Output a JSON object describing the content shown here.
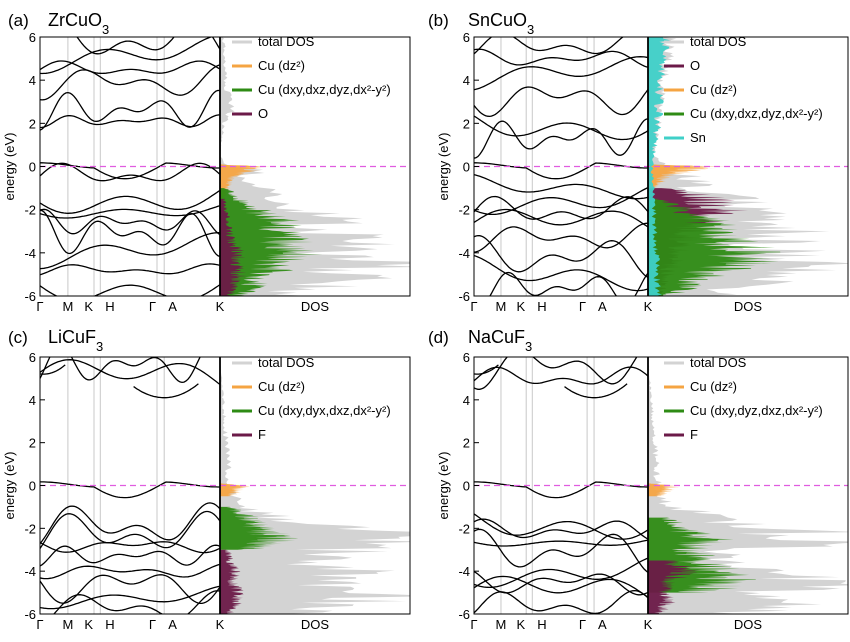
{
  "figure": {
    "yaxis_label": "energy (eV)",
    "dos_label": "DOS",
    "y_ticks": [
      "6",
      "4",
      "2",
      "0",
      "-2",
      "-4",
      "-6"
    ]
  },
  "colors": {
    "total_dos": "#d3d3d3",
    "cu_dz2": "#f5a442",
    "cu_t2": "#2e8b14",
    "anion": "#6b1a48",
    "sn": "#3fd0c8",
    "fermi": "#e05ce0",
    "band": "#000000",
    "gridline": "#c8c8c8"
  },
  "chart_data": [
    {
      "type": "line",
      "panel": "(a)",
      "title": "ZrCuO3",
      "ylabel": "energy (eV)",
      "xlabel": "DOS",
      "ylim": [
        -6,
        6
      ],
      "fermi_level": 0,
      "k_path": [
        "Γ",
        "M",
        "K",
        "H",
        "Γ",
        "A",
        "K"
      ],
      "legend": [
        "total DOS",
        "Cu (dz²)",
        "Cu (dxy,dxz,dyz,dx²-y²)",
        "O"
      ],
      "dos_series": [
        {
          "name": "total DOS",
          "energy": [
            -6,
            -5.5,
            -5,
            -4.5,
            -4,
            -3.5,
            -3,
            -2.5,
            -2,
            -1.5,
            -1,
            -0.5,
            -0.2,
            0,
            0.5,
            2,
            2.6,
            4,
            6
          ],
          "values": [
            0.35,
            0.55,
            0.75,
            0.8,
            0.65,
            0.7,
            0.55,
            0.6,
            0.5,
            0.35,
            0.2,
            0.1,
            0.25,
            0.05,
            0,
            0.02,
            0.06,
            0.03,
            0.02
          ]
        },
        {
          "name": "Cu (dz²)",
          "energy": [
            -1.5,
            -1,
            -0.5,
            -0.2,
            0,
            0.1
          ],
          "values": [
            0.02,
            0.04,
            0.06,
            0.15,
            0.2,
            0
          ]
        },
        {
          "name": "Cu (dxy,dxz,dyz,dx²-y²)",
          "energy": [
            -6,
            -5,
            -4.5,
            -4,
            -3.5,
            -3,
            -2.5,
            -2,
            -1.5,
            -1
          ],
          "values": [
            0.1,
            0.25,
            0.3,
            0.4,
            0.35,
            0.3,
            0.3,
            0.2,
            0.1,
            0.03
          ]
        },
        {
          "name": "O",
          "energy": [
            -6,
            -5.5,
            -5,
            -4.5,
            -4,
            -3.5,
            -3,
            -2.5,
            -2,
            -1.5
          ],
          "values": [
            0.05,
            0.08,
            0.1,
            0.08,
            0.1,
            0.06,
            0.05,
            0.04,
            0.03,
            0.02
          ]
        }
      ]
    },
    {
      "type": "line",
      "panel": "(b)",
      "title": "SnCuO3",
      "ylabel": "energy (eV)",
      "xlabel": "DOS",
      "ylim": [
        -6,
        6
      ],
      "fermi_level": 0,
      "k_path": [
        "Γ",
        "M",
        "K",
        "H",
        "Γ",
        "A",
        "K"
      ],
      "legend": [
        "total DOS",
        "O",
        "Cu (dz²)",
        "Cu (dxy,dxz,dyz,dx²-y²)",
        "Sn"
      ],
      "dos_series": [
        {
          "name": "total DOS",
          "energy": [
            -6,
            -5.5,
            -5,
            -4.5,
            -4,
            -3.5,
            -3,
            -2.5,
            -2,
            -1.5,
            -1,
            -0.5,
            0,
            0.5,
            2,
            4,
            6
          ],
          "values": [
            0.3,
            0.5,
            0.6,
            0.8,
            0.7,
            0.6,
            0.7,
            0.5,
            0.5,
            0.4,
            0.25,
            0.2,
            0.1,
            0.02,
            0.05,
            0.08,
            0.1
          ]
        },
        {
          "name": "O",
          "energy": [
            -6,
            -5,
            -4,
            -3,
            -2,
            -1.5,
            -1
          ],
          "values": [
            0.05,
            0.1,
            0.15,
            0.2,
            0.35,
            0.3,
            0.1
          ]
        },
        {
          "name": "Cu (dz²)",
          "energy": [
            -1,
            -0.5,
            -0.2,
            0,
            0.1
          ],
          "values": [
            0.03,
            0.08,
            0.18,
            0.3,
            0
          ]
        },
        {
          "name": "Cu (dxy,dxz,dyz,dx²-y²)",
          "energy": [
            -6,
            -5,
            -4.5,
            -4,
            -3.5,
            -3,
            -2.5,
            -2,
            -1.5
          ],
          "values": [
            0.1,
            0.3,
            0.45,
            0.5,
            0.4,
            0.35,
            0.3,
            0.2,
            0.05
          ]
        },
        {
          "name": "Sn",
          "energy": [
            -6,
            -4,
            -2,
            0,
            2,
            4,
            6
          ],
          "values": [
            0.05,
            0.04,
            0.03,
            0.02,
            0.05,
            0.06,
            0.08
          ]
        }
      ]
    },
    {
      "type": "line",
      "panel": "(c)",
      "title": "LiCuF3",
      "ylabel": "energy (eV)",
      "xlabel": "DOS",
      "ylim": [
        -6,
        6
      ],
      "fermi_level": 0,
      "k_path": [
        "Γ",
        "M",
        "K",
        "H",
        "Γ",
        "A",
        "K"
      ],
      "legend": [
        "total DOS",
        "Cu (dz²)",
        "Cu (dxy,dyx,dxz,dx²-y²)",
        "F"
      ],
      "dos_series": [
        {
          "name": "total DOS",
          "energy": [
            -6,
            -5.5,
            -5,
            -4.5,
            -4,
            -3.5,
            -3,
            -2.5,
            -2,
            -1.5,
            -1,
            0,
            6
          ],
          "values": [
            0.5,
            0.7,
            0.9,
            0.6,
            0.8,
            0.55,
            0.7,
            1.0,
            0.6,
            0.3,
            0.1,
            0.05,
            0
          ]
        },
        {
          "name": "Cu (dz²)",
          "energy": [
            -0.5,
            0,
            0.1
          ],
          "values": [
            0.05,
            0.12,
            0
          ]
        },
        {
          "name": "Cu (dxy,dyx,dxz,dx²-y²)",
          "energy": [
            -3,
            -2.5,
            -2,
            -1.5,
            -1
          ],
          "values": [
            0.15,
            0.3,
            0.2,
            0.15,
            0.05
          ]
        },
        {
          "name": "F",
          "energy": [
            -6,
            -5.5,
            -5,
            -4.5,
            -4,
            -3.5,
            -3
          ],
          "values": [
            0.05,
            0.08,
            0.1,
            0.06,
            0.08,
            0.05,
            0.04
          ]
        }
      ]
    },
    {
      "type": "line",
      "panel": "(d)",
      "title": "NaCuF3",
      "ylabel": "energy (eV)",
      "xlabel": "DOS",
      "ylim": [
        -6,
        6
      ],
      "fermi_level": 0,
      "k_path": [
        "Γ",
        "M",
        "K",
        "H",
        "Γ",
        "A",
        "K"
      ],
      "legend": [
        "total DOS",
        "Cu (dz²)",
        "Cu (dxy,dyz,dxz,dx²-y²)",
        "F"
      ],
      "dos_series": [
        {
          "name": "total DOS",
          "energy": [
            -6,
            -5.5,
            -5,
            -4.5,
            -4,
            -3.5,
            -3,
            -2.5,
            -2,
            -1.5,
            -1,
            0,
            6
          ],
          "values": [
            0.4,
            0.8,
            0.7,
            0.85,
            0.6,
            0.3,
            0.5,
            1.0,
            0.6,
            0.4,
            0.1,
            0.05,
            0
          ]
        },
        {
          "name": "Cu (dz²)",
          "energy": [
            -0.5,
            0,
            0.1
          ],
          "values": [
            0.05,
            0.12,
            0
          ]
        },
        {
          "name": "Cu (dxy,dyz,dxz,dx²-y²)",
          "energy": [
            -5,
            -4.5,
            -3,
            -2.5,
            -2,
            -1.5
          ],
          "values": [
            0.25,
            0.4,
            0.2,
            0.3,
            0.15,
            0.1
          ]
        },
        {
          "name": "F",
          "energy": [
            -6,
            -5.5,
            -5,
            -4.5,
            -4,
            -3.5
          ],
          "values": [
            0.05,
            0.1,
            0.08,
            0.1,
            0.2,
            0.1
          ]
        }
      ]
    }
  ]
}
